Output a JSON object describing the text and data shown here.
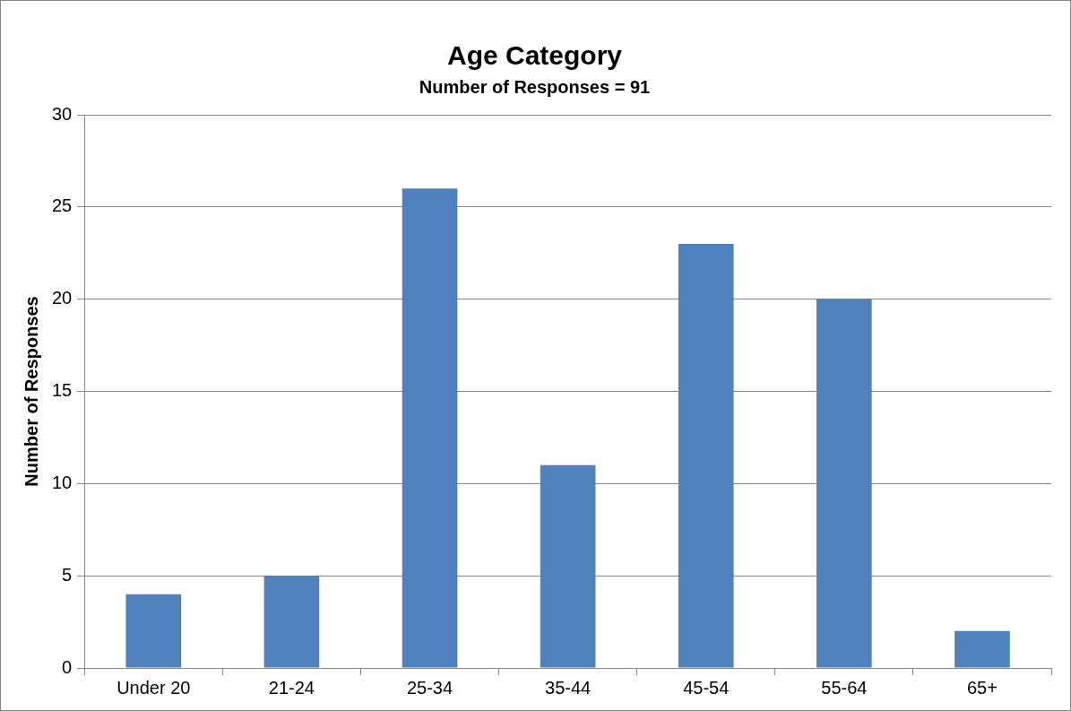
{
  "chart_data": {
    "type": "bar",
    "title": "Age Category",
    "subtitle": "Number of Responses = 91",
    "ylabel": "Number of Responses",
    "categories": [
      "Under 20",
      "21-24",
      "25-34",
      "35-44",
      "45-54",
      "55-64",
      "65+"
    ],
    "values": [
      4,
      5,
      26,
      11,
      23,
      20,
      2
    ],
    "color": "#4f81bd",
    "ylim": [
      0,
      30
    ],
    "yticks": [
      0,
      5,
      10,
      15,
      20,
      25,
      30
    ],
    "grid": "y",
    "legend": false
  }
}
